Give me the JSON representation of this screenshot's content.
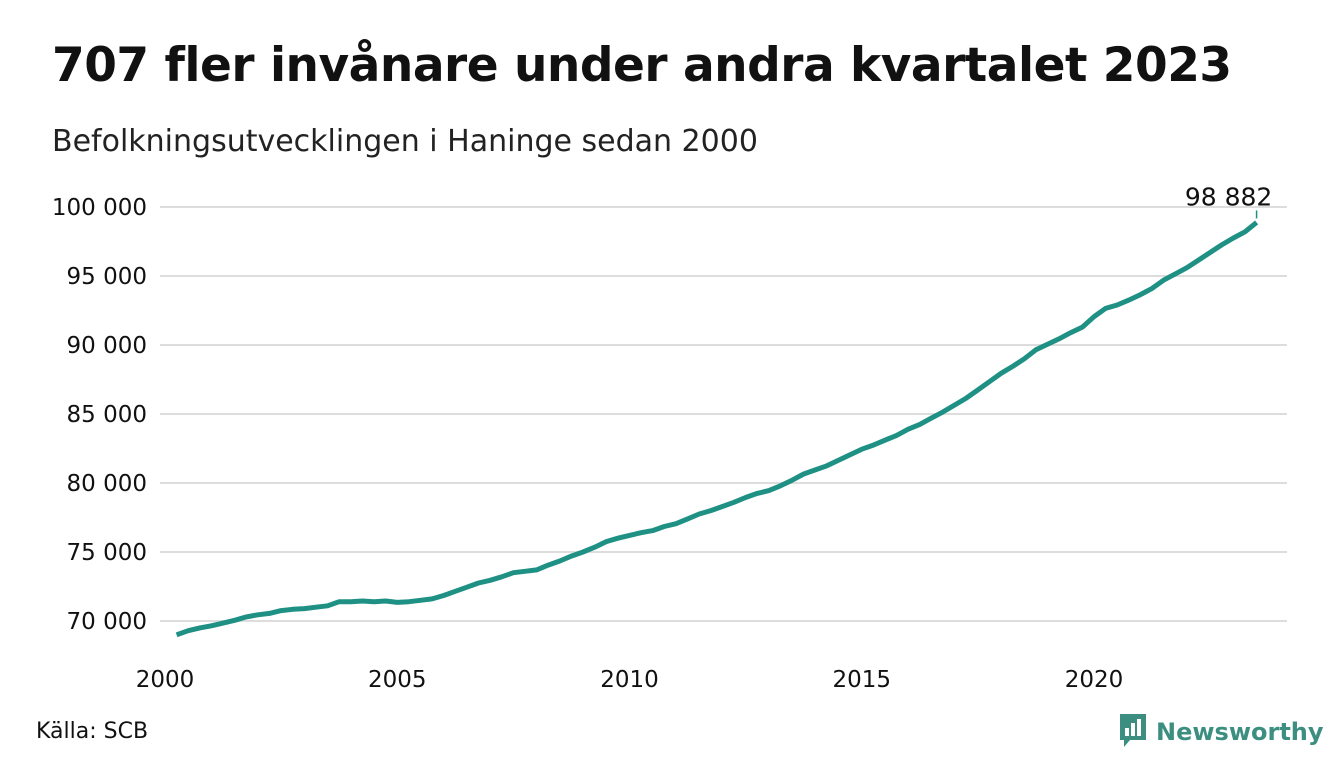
{
  "header": {
    "title": "707 fler invånare under andra kvartalet 2023",
    "subtitle": "Befolkningsutvecklingen i Haninge sedan 2000"
  },
  "footer": {
    "source": "Källa: SCB",
    "brand": "Newsworthy",
    "brand_icon": "newsworthy-logo-icon"
  },
  "colors": {
    "line": "#1f9184",
    "grid": "#dddddd",
    "brand": "#3c8f80"
  },
  "chart_data": {
    "type": "line",
    "title": "707 fler invånare under andra kvartalet 2023",
    "subtitle": "Befolkningsutvecklingen i Haninge sedan 2000",
    "xlabel": "",
    "ylabel": "",
    "xlim": [
      2000,
      2024.4
    ],
    "ylim": [
      69000,
      100000
    ],
    "grid": "horizontal",
    "y_ticks": [
      {
        "value": 70000,
        "label": "70 000"
      },
      {
        "value": 75000,
        "label": "75 000"
      },
      {
        "value": 80000,
        "label": "80 000"
      },
      {
        "value": 85000,
        "label": "85 000"
      },
      {
        "value": 90000,
        "label": "90 000"
      },
      {
        "value": 95000,
        "label": "95 000"
      },
      {
        "value": 100000,
        "label": "100 000"
      }
    ],
    "x_ticks": [
      {
        "value": 2000,
        "label": "2000"
      },
      {
        "value": 2005,
        "label": "2005"
      },
      {
        "value": 2010,
        "label": "2010"
      },
      {
        "value": 2015,
        "label": "2015"
      },
      {
        "value": 2020,
        "label": "2020"
      }
    ],
    "end_label": "98 882",
    "series": [
      {
        "x": [
          2000.25,
          2000.5,
          2000.75,
          2001.0,
          2001.25,
          2001.5,
          2001.75,
          2002.0,
          2002.25,
          2002.5,
          2002.75,
          2003.0,
          2003.25,
          2003.5,
          2003.75,
          2004.0,
          2004.25,
          2004.5,
          2004.75,
          2005.0,
          2005.25,
          2005.5,
          2005.75,
          2006.0,
          2006.25,
          2006.5,
          2006.75,
          2007.0,
          2007.25,
          2007.5,
          2007.75,
          2008.0,
          2008.25,
          2008.5,
          2008.75,
          2009.0,
          2009.25,
          2009.5,
          2009.75,
          2010.0,
          2010.25,
          2010.5,
          2010.75,
          2011.0,
          2011.25,
          2011.5,
          2011.75,
          2012.0,
          2012.25,
          2012.5,
          2012.75,
          2013.0,
          2013.25,
          2013.5,
          2013.75,
          2014.0,
          2014.25,
          2014.5,
          2014.75,
          2015.0,
          2015.25,
          2015.5,
          2015.75,
          2016.0,
          2016.25,
          2016.5,
          2016.75,
          2017.0,
          2017.25,
          2017.5,
          2017.75,
          2018.0,
          2018.25,
          2018.5,
          2018.75,
          2019.0,
          2019.25,
          2019.5,
          2019.75,
          2020.0,
          2020.25,
          2020.5,
          2020.75,
          2021.0,
          2021.25,
          2021.5,
          2021.75,
          2022.0,
          2022.25,
          2022.5,
          2022.75,
          2023.0,
          2023.25,
          2023.5
        ],
        "values": [
          69000,
          69300,
          69500,
          69650,
          69850,
          70050,
          70300,
          70450,
          70550,
          70750,
          70850,
          70900,
          71000,
          71100,
          71400,
          71400,
          71450,
          71400,
          71450,
          71350,
          71400,
          71500,
          71600,
          71850,
          72150,
          72450,
          72750,
          72950,
          73200,
          73500,
          73600,
          73700,
          74050,
          74350,
          74700,
          75000,
          75350,
          75750,
          76000,
          76200,
          76400,
          76550,
          76850,
          77050,
          77400,
          77750,
          78000,
          78300,
          78600,
          78950,
          79250,
          79450,
          79800,
          80200,
          80650,
          80950,
          81250,
          81650,
          82050,
          82450,
          82750,
          83100,
          83450,
          83900,
          84250,
          84700,
          85150,
          85650,
          86150,
          86750,
          87350,
          87950,
          88450,
          89000,
          89650,
          90050,
          90450,
          90900,
          91300,
          92050,
          92650,
          92900,
          93250,
          93650,
          94100,
          94700,
          95150,
          95600,
          96150,
          96700,
          97250,
          97750,
          98200,
          98882
        ]
      }
    ]
  }
}
